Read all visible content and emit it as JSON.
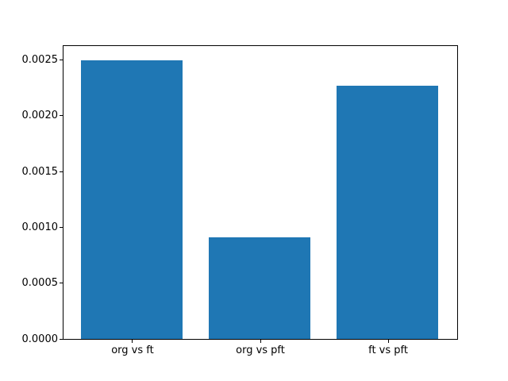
{
  "chart_data": {
    "type": "bar",
    "categories": [
      "org vs ft",
      "org vs pft",
      "ft vs pft"
    ],
    "values": [
      0.0025,
      0.00091,
      0.00227
    ],
    "title": "",
    "xlabel": "",
    "ylabel": "",
    "y_ticks": [
      0.0,
      0.0005,
      0.001,
      0.0015,
      0.002,
      0.0025
    ],
    "y_tick_labels": [
      "0.0000",
      "0.0005",
      "0.0010",
      "0.0015",
      "0.0020",
      "0.0025"
    ],
    "ylim": [
      0,
      0.002625
    ],
    "xlim": [
      -0.54,
      2.54
    ],
    "bar_width_fraction": 0.8,
    "bar_color": "#1f77b4",
    "spine_color": "#000000",
    "background_color": "#ffffff",
    "grid": false,
    "legend": null
  }
}
